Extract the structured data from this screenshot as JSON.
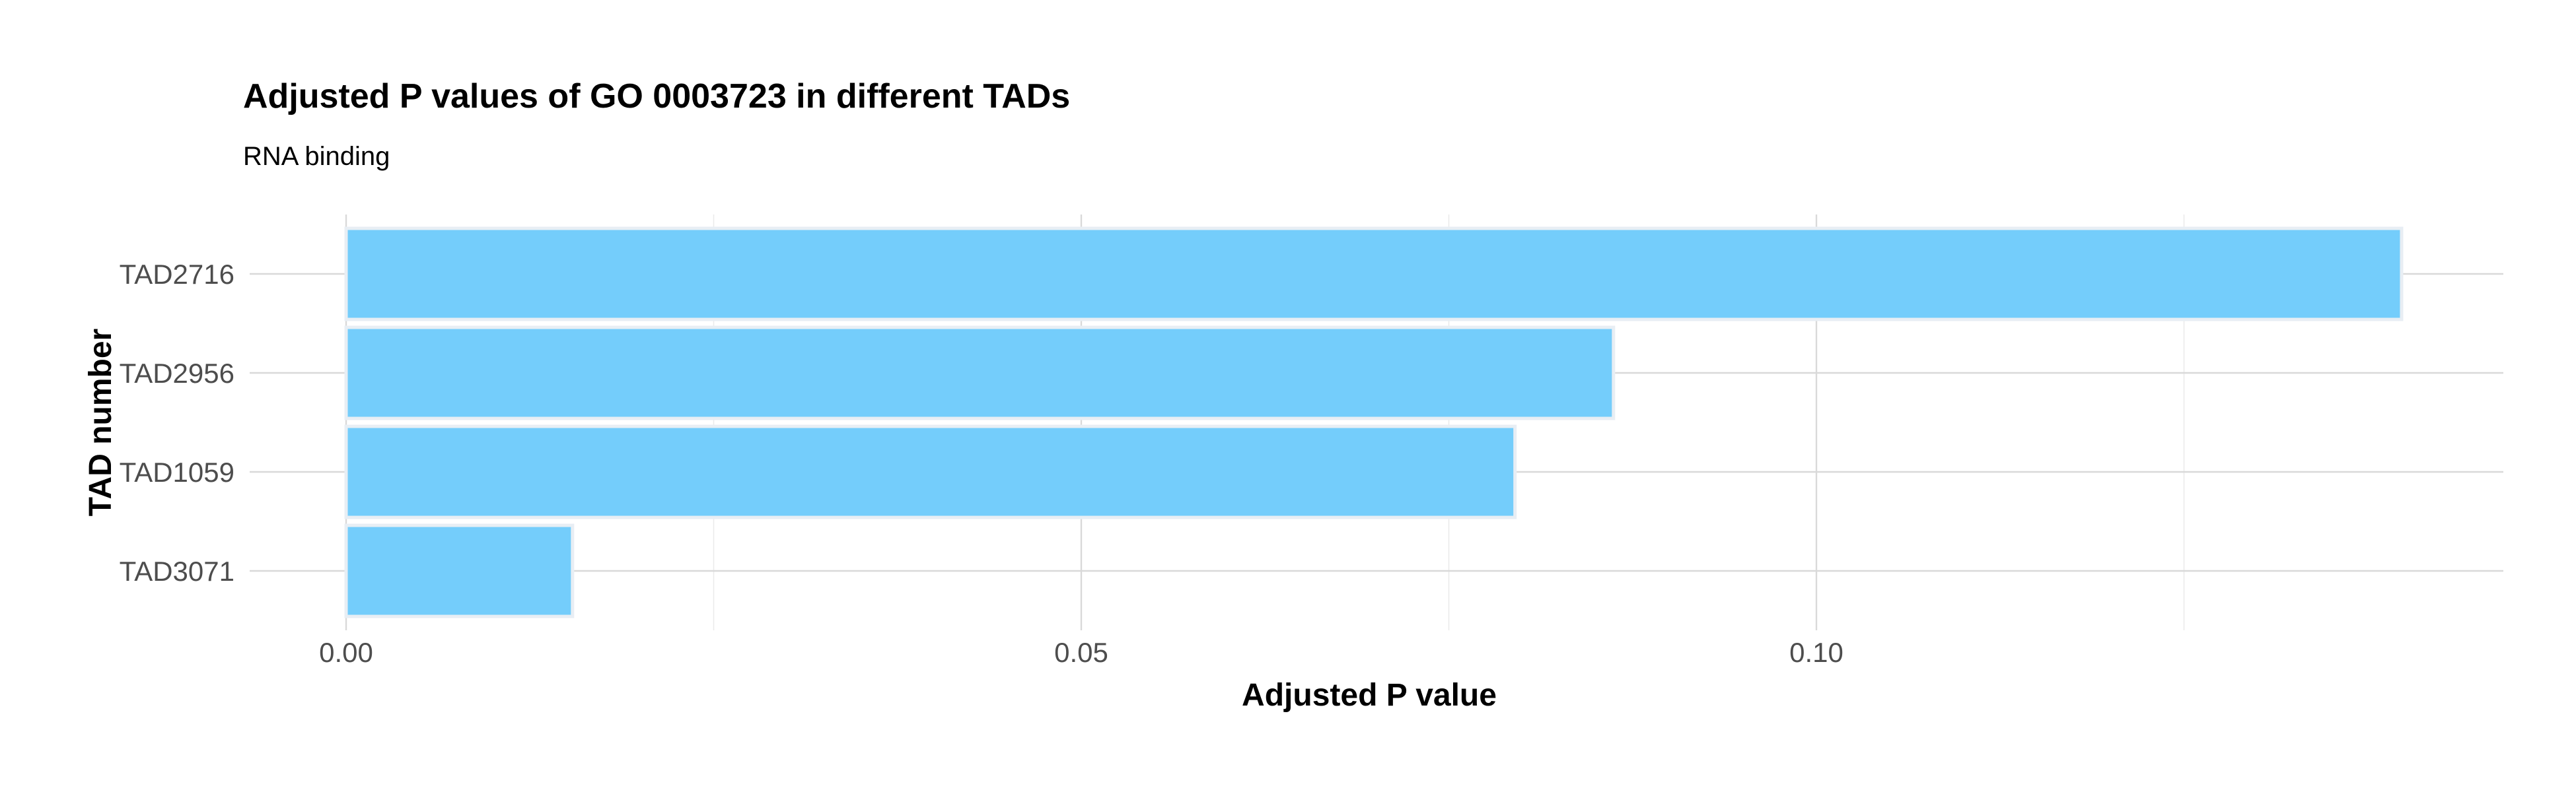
{
  "chart_data": {
    "type": "bar",
    "orientation": "horizontal",
    "title": "Adjusted P values of GO 0003723 in different TADs",
    "subtitle": "RNA binding",
    "xlabel": "Adjusted P value",
    "ylabel": "TAD number",
    "categories": [
      "TAD2716",
      "TAD2956",
      "TAD1059",
      "TAD3071"
    ],
    "values": [
      0.1398,
      0.0862,
      0.0795,
      0.0154
    ],
    "xlim": [
      0.0,
      0.1468
    ],
    "x_ticks": [
      0.0,
      0.05,
      0.1
    ],
    "x_tick_labels": [
      "0.00",
      "0.05",
      "0.10"
    ],
    "x_minor_ticks": [
      0.025,
      0.075,
      0.125
    ],
    "grid": true,
    "bar_color": "#74cdfb",
    "bar_outline_color": "#e8eef4"
  }
}
